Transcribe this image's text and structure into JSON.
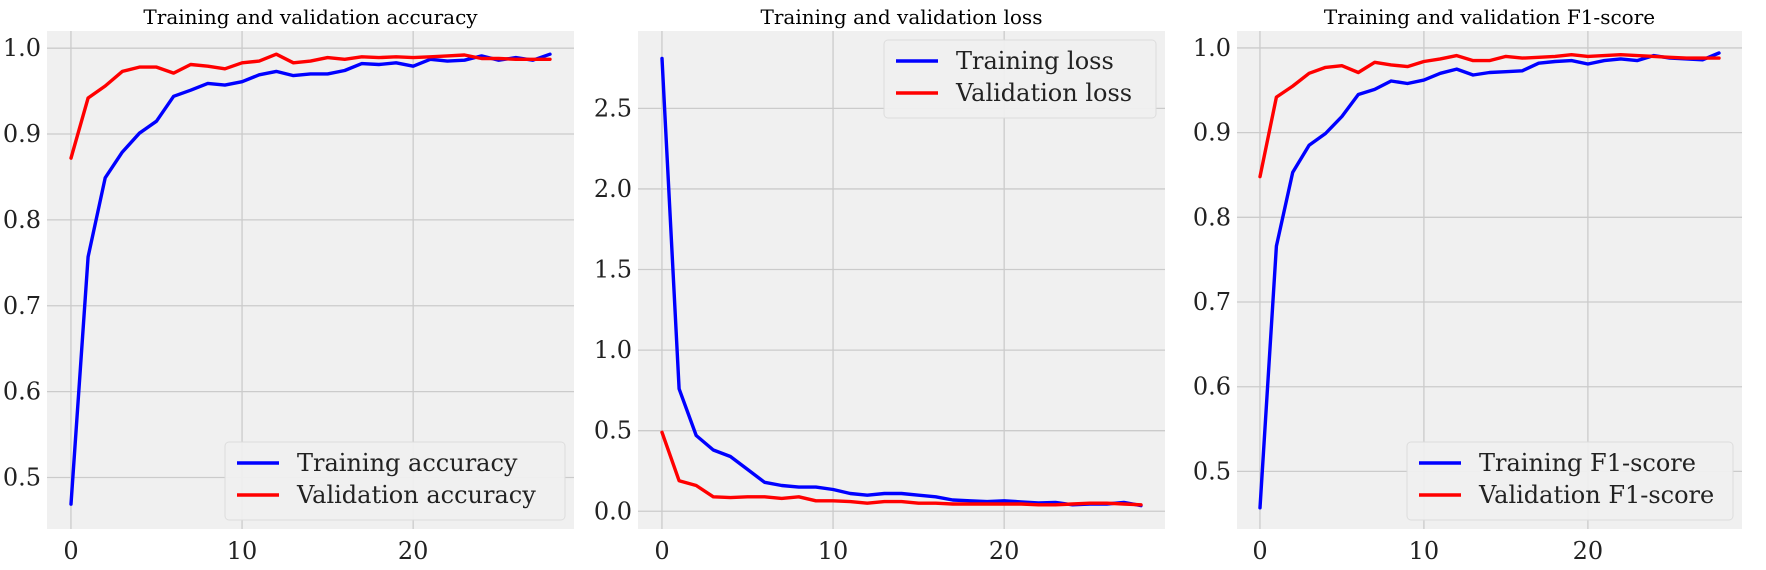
{
  "figure": {
    "background": "#ffffff",
    "axes_background": "#f0f0f0",
    "grid_color": "#cbcbcb",
    "colors": {
      "training": "#0000ff",
      "validation": "#ff0000"
    }
  },
  "chart_data": [
    {
      "type": "line",
      "title": "Training and validation accuracy",
      "xlabel": "",
      "ylabel": "",
      "xlim": [
        -1.4,
        29.4
      ],
      "ylim": [
        0.44,
        1.02
      ],
      "xticks": [
        0,
        10,
        20
      ],
      "yticks": [
        0.5,
        0.6,
        0.7,
        0.8,
        0.9,
        1.0
      ],
      "ytick_labels": [
        "0.5",
        "0.6",
        "0.7",
        "0.8",
        "0.9",
        "1.0"
      ],
      "grid": true,
      "legend": "lower-right",
      "x": [
        0,
        1,
        2,
        3,
        4,
        5,
        6,
        7,
        8,
        9,
        10,
        11,
        12,
        13,
        14,
        15,
        16,
        17,
        18,
        19,
        20,
        21,
        22,
        23,
        24,
        25,
        26,
        27,
        28
      ],
      "series": [
        {
          "name": "Training accuracy",
          "color": "#0000ff",
          "values": [
            0.469,
            0.757,
            0.849,
            0.879,
            0.901,
            0.915,
            0.944,
            0.951,
            0.959,
            0.957,
            0.961,
            0.969,
            0.973,
            0.968,
            0.97,
            0.97,
            0.974,
            0.982,
            0.981,
            0.983,
            0.979,
            0.987,
            0.985,
            0.986,
            0.991,
            0.986,
            0.989,
            0.986,
            0.993
          ]
        },
        {
          "name": "Validation accuracy",
          "color": "#ff0000",
          "values": [
            0.872,
            0.942,
            0.956,
            0.973,
            0.978,
            0.978,
            0.971,
            0.981,
            0.979,
            0.976,
            0.983,
            0.985,
            0.993,
            0.983,
            0.985,
            0.989,
            0.987,
            0.99,
            0.989,
            0.99,
            0.989,
            0.99,
            0.991,
            0.992,
            0.988,
            0.988,
            0.987,
            0.987,
            0.987
          ]
        }
      ]
    },
    {
      "type": "line",
      "title": "Training and validation loss",
      "xlabel": "",
      "ylabel": "",
      "xlim": [
        -1.4,
        29.4
      ],
      "ylim": [
        -0.11,
        2.98
      ],
      "xticks": [
        0,
        10,
        20
      ],
      "yticks": [
        0.0,
        0.5,
        1.0,
        1.5,
        2.0,
        2.5
      ],
      "ytick_labels": [
        "0.0",
        "0.5",
        "1.0",
        "1.5",
        "2.0",
        "2.5"
      ],
      "grid": true,
      "legend": "upper-right",
      "x": [
        0,
        1,
        2,
        3,
        4,
        5,
        6,
        7,
        8,
        9,
        10,
        11,
        12,
        13,
        14,
        15,
        16,
        17,
        18,
        19,
        20,
        21,
        22,
        23,
        24,
        25,
        26,
        27,
        28
      ],
      "series": [
        {
          "name": "Training loss",
          "color": "#0000ff",
          "values": [
            2.81,
            0.76,
            0.47,
            0.38,
            0.34,
            0.26,
            0.18,
            0.16,
            0.15,
            0.15,
            0.135,
            0.11,
            0.1,
            0.11,
            0.11,
            0.1,
            0.09,
            0.07,
            0.065,
            0.06,
            0.065,
            0.058,
            0.052,
            0.055,
            0.04,
            0.045,
            0.045,
            0.055,
            0.035
          ]
        },
        {
          "name": "Validation loss",
          "color": "#ff0000",
          "values": [
            0.49,
            0.19,
            0.16,
            0.09,
            0.085,
            0.09,
            0.09,
            0.08,
            0.09,
            0.065,
            0.065,
            0.06,
            0.05,
            0.06,
            0.06,
            0.05,
            0.05,
            0.045,
            0.045,
            0.045,
            0.045,
            0.045,
            0.04,
            0.04,
            0.045,
            0.05,
            0.05,
            0.045,
            0.04
          ]
        }
      ]
    },
    {
      "type": "line",
      "title": "Training and validation F1-score",
      "xlabel": "",
      "ylabel": "",
      "xlim": [
        -1.4,
        29.4
      ],
      "ylim": [
        0.432,
        1.02
      ],
      "xticks": [
        0,
        10,
        20
      ],
      "yticks": [
        0.5,
        0.6,
        0.7,
        0.8,
        0.9,
        1.0
      ],
      "ytick_labels": [
        "0.5",
        "0.6",
        "0.7",
        "0.8",
        "0.9",
        "1.0"
      ],
      "grid": true,
      "legend": "lower-right",
      "x": [
        0,
        1,
        2,
        3,
        4,
        5,
        6,
        7,
        8,
        9,
        10,
        11,
        12,
        13,
        14,
        15,
        16,
        17,
        18,
        19,
        20,
        21,
        22,
        23,
        24,
        25,
        26,
        27,
        28
      ],
      "series": [
        {
          "name": "Training F1-score",
          "color": "#0000ff",
          "values": [
            0.457,
            0.766,
            0.853,
            0.885,
            0.899,
            0.919,
            0.945,
            0.951,
            0.961,
            0.958,
            0.962,
            0.97,
            0.975,
            0.968,
            0.971,
            0.972,
            0.973,
            0.982,
            0.984,
            0.985,
            0.981,
            0.985,
            0.987,
            0.985,
            0.991,
            0.988,
            0.987,
            0.986,
            0.994
          ]
        },
        {
          "name": "Validation F1-score",
          "color": "#ff0000",
          "values": [
            0.848,
            0.942,
            0.955,
            0.97,
            0.977,
            0.979,
            0.971,
            0.983,
            0.98,
            0.978,
            0.984,
            0.987,
            0.991,
            0.985,
            0.985,
            0.99,
            0.988,
            0.989,
            0.99,
            0.992,
            0.99,
            0.991,
            0.992,
            0.991,
            0.99,
            0.989,
            0.988,
            0.988,
            0.988
          ]
        }
      ]
    }
  ]
}
